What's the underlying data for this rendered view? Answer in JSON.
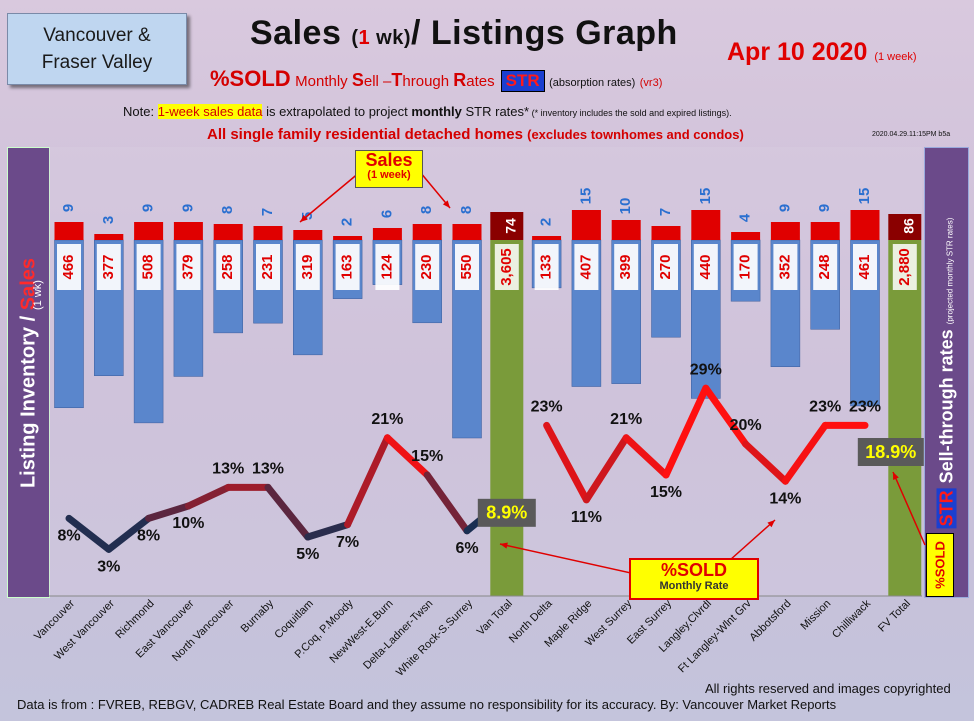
{
  "header": {
    "logo_line1": "Vancouver &",
    "logo_line2": "Fraser Valley",
    "title_a": "Sales ",
    "title_b": "(",
    "title_c": "1",
    "title_d": " wk)",
    "title_e": "/ Listings Graph",
    "date": "Apr 10  2020",
    "date_small": "(1 week)",
    "subtitle_sold": "%SOLD",
    "subtitle_a": "Monthly ",
    "subtitle_S": "S",
    "subtitle_b": "ell –",
    "subtitle_T": "T",
    "subtitle_c": "hrough ",
    "subtitle_R": "R",
    "subtitle_d": "ates",
    "str_label": "STR",
    "subtitle_note": "(absorption rates)",
    "subtitle_vr": "(vr3)",
    "note_a": "Note: ",
    "note_hl": "1-week sales data",
    "note_b": " is extrapolated to project ",
    "note_bold": "monthly",
    "note_c": " STR rates*",
    "note_tiny": " (* inventory includes the sold and expired listings).",
    "line3_a": "All single family residential detached homes ",
    "line3_b": "(excludes townhomes and condos)",
    "stamp": "2020.04.29.11:15PM b5a"
  },
  "side": {
    "left_a": "Listing Inventory / ",
    "left_b": "Sales",
    "left_small": "(1 wk)",
    "right_a": "Sell-through rates ",
    "right_small": "(projected monthly STR rates)",
    "sold_label": "%SOLD"
  },
  "callouts": {
    "sales_a": "Sales",
    "sales_b": "(1 week)",
    "sold_a": "%SOLD",
    "sold_b": "Monthly Rate"
  },
  "footer": {
    "source": "Data is from : FVREB, REBGV, CADREB Real Estate Board and they assume no responsibility for its accuracy. By: Vancouver Market Reports",
    "rights": "All rights reserved and  images copyrighted"
  },
  "colors": {
    "inventory": "#5a86cc",
    "sales": "#e00000",
    "total_bar": "#7a9b3a",
    "line_low": "#1a2f52",
    "line_high": "#ff1010",
    "panel": "#6b4a8a"
  },
  "chart_data": {
    "type": "bar",
    "categories": [
      "Vancouver",
      "West Vancouver",
      "Richmond",
      "East Vancouver",
      "North Vancouver",
      "Burnaby",
      "Coquitlam",
      "P.Coq, P.Moody",
      "NewWest-E.Burn",
      "Delta-Ladner-Twsn",
      "White Rock-S.Surrey",
      "Van Total",
      "North Delta",
      "Maple Ridge",
      "West Surrey",
      "East Surrey",
      "Langley,Clvrdl",
      "Ft Langley-Wlnt Grv",
      "Abbotsford",
      "Mission",
      "Chilliwack",
      "FV Total"
    ],
    "inventory": [
      466,
      377,
      508,
      379,
      258,
      231,
      319,
      163,
      124,
      230,
      550,
      3605,
      133,
      407,
      399,
      270,
      440,
      170,
      352,
      248,
      461,
      2880
    ],
    "inventory_labels": [
      "466",
      "377",
      "508",
      "379",
      "258",
      "231",
      "319",
      "163",
      "124",
      "230",
      "550",
      "3,605",
      "133",
      "407",
      "399",
      "270",
      "440",
      "170",
      "352",
      "248",
      "461",
      "2,880"
    ],
    "sales": [
      9,
      3,
      9,
      9,
      8,
      7,
      5,
      2,
      6,
      8,
      8,
      74,
      2,
      15,
      10,
      7,
      15,
      4,
      9,
      9,
      15,
      86
    ],
    "str_percent": [
      8,
      3,
      8,
      10,
      13,
      13,
      5,
      7,
      21,
      15,
      6,
      null,
      23,
      11,
      21,
      15,
      29,
      20,
      14,
      23,
      23,
      null
    ],
    "str_labels": [
      "8%",
      "3%",
      "8%",
      "10%",
      "13%",
      "13%",
      "5%",
      "7%",
      "21%",
      "15%",
      "6%",
      "",
      "23%",
      "11%",
      "21%",
      "15%",
      "29%",
      "20%",
      "14%",
      "23%",
      "23%",
      ""
    ],
    "van_total_str": "8.9%",
    "fv_total_str": "18.9%",
    "ylabel": "Listing Inventory / Sales (1 wk)",
    "y2label": "%SOLD STR Sell-through rates (projected monthly STR rates)"
  }
}
